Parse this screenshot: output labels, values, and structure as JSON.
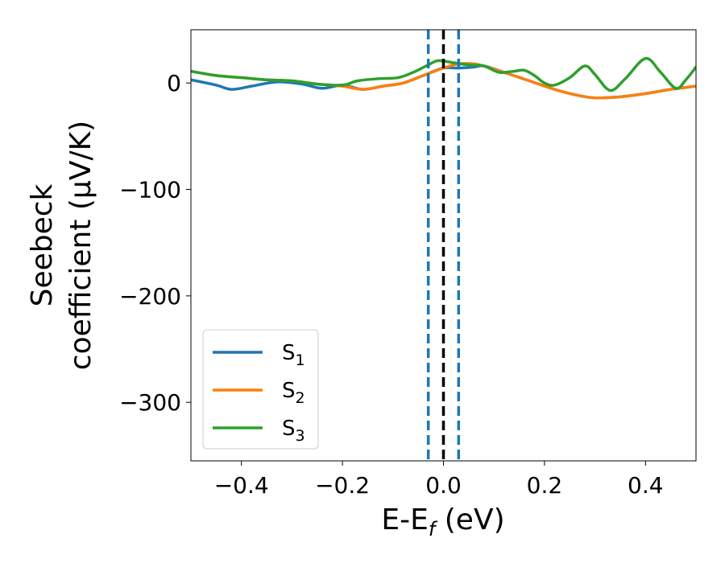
{
  "chart_data": {
    "type": "line",
    "xlabel": "E-E",
    "xlabel_sub": "f",
    "xlabel_unit": " (eV)",
    "ylabel_line1": "Seebeck",
    "ylabel_line2": "coefficient  (μV/K)",
    "xlim": [
      -0.5,
      0.5
    ],
    "ylim": [
      -355,
      50
    ],
    "xticks": [
      -0.4,
      -0.2,
      0.0,
      0.2,
      0.4
    ],
    "xtick_labels": [
      "−0.4",
      "−0.2",
      "0.0",
      "0.2",
      "0.4"
    ],
    "yticks": [
      0,
      -100,
      -200,
      -300
    ],
    "ytick_labels": [
      "0",
      "−100",
      "−200",
      "−300"
    ],
    "grid": false,
    "legend_position": "lower-left",
    "vlines": [
      {
        "x": -0.03,
        "style": "dashed",
        "color": "#1f77b4"
      },
      {
        "x": 0.0,
        "style": "dashed",
        "color": "#000000"
      },
      {
        "x": 0.03,
        "style": "dashed",
        "color": "#1f77b4"
      }
    ],
    "series": [
      {
        "name": "S",
        "sub": "1",
        "color": "#1f77b4",
        "x": [
          -0.5,
          -0.45,
          -0.42,
          -0.38,
          -0.33,
          -0.28,
          -0.24,
          -0.2,
          -0.16,
          -0.12,
          -0.08,
          -0.04,
          0.0,
          0.03,
          0.06,
          0.08,
          0.12,
          0.17,
          0.22,
          0.26,
          0.3,
          0.35,
          0.4,
          0.45,
          0.5
        ],
        "y": [
          3,
          -2,
          -6,
          -3,
          1,
          -1,
          -5,
          -2,
          -6,
          -3,
          0,
          7,
          14,
          14,
          15,
          16,
          10,
          2,
          -6,
          -11,
          -14,
          -13,
          -10,
          -6,
          -3
        ]
      },
      {
        "name": "S",
        "sub": "2",
        "color": "#ff7f0e",
        "x": [
          -0.5,
          -0.45,
          -0.4,
          -0.35,
          -0.3,
          -0.25,
          -0.2,
          -0.16,
          -0.12,
          -0.08,
          -0.04,
          0.0,
          0.03,
          0.06,
          0.08,
          0.12,
          0.17,
          0.22,
          0.26,
          0.3,
          0.35,
          0.4,
          0.45,
          0.5
        ],
        "y": [
          11,
          7,
          5,
          3,
          2,
          -1,
          -3,
          -6,
          -3,
          0,
          7,
          14,
          18,
          18,
          16,
          10,
          2,
          -6,
          -11,
          -14,
          -13,
          -10,
          -6,
          -3
        ]
      },
      {
        "name": "S",
        "sub": "3",
        "color": "#2ca02c",
        "x": [
          -0.5,
          -0.45,
          -0.4,
          -0.35,
          -0.3,
          -0.25,
          -0.2,
          -0.17,
          -0.13,
          -0.09,
          -0.06,
          -0.03,
          -0.01,
          0.02,
          0.05,
          0.08,
          0.11,
          0.14,
          0.16,
          0.18,
          0.2,
          0.22,
          0.25,
          0.28,
          0.3,
          0.33,
          0.36,
          0.4,
          0.43,
          0.46,
          0.48,
          0.5
        ],
        "y": [
          11,
          7,
          5,
          3,
          2,
          -1,
          -2,
          2,
          4,
          5,
          10,
          17,
          21,
          19,
          17,
          16,
          10,
          11,
          12,
          7,
          0,
          -2,
          5,
          16,
          8,
          -7,
          4,
          23,
          10,
          -5,
          3,
          15
        ]
      }
    ]
  }
}
